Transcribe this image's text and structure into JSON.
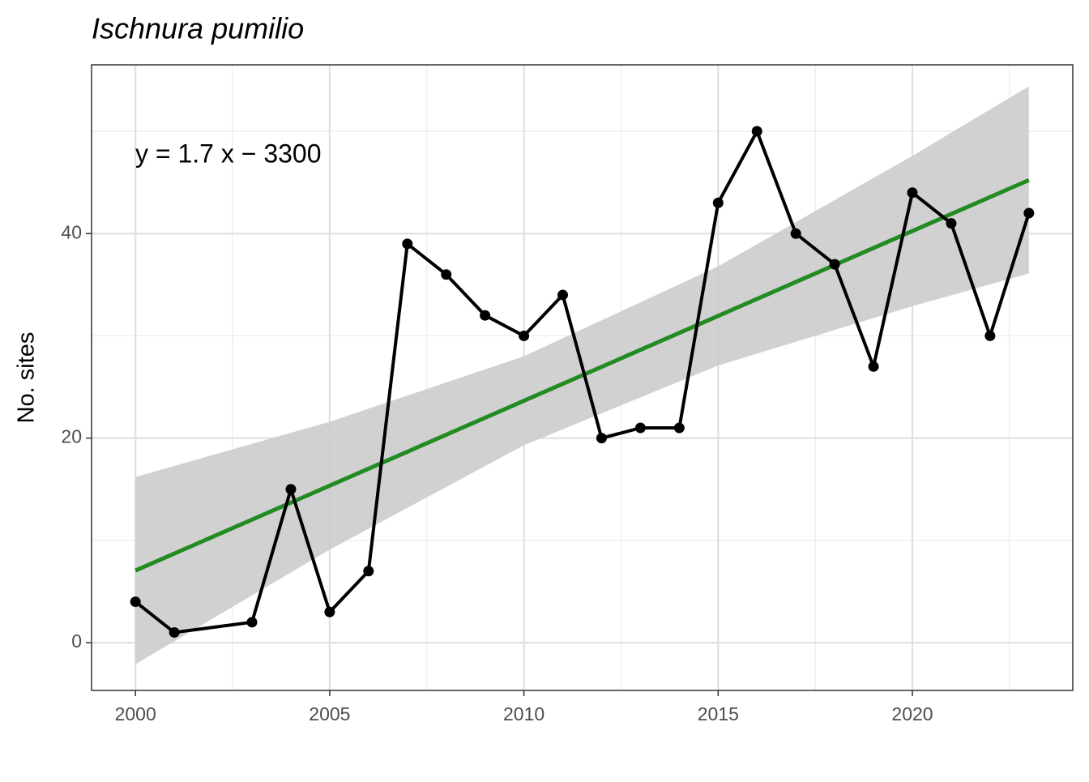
{
  "chart_data": {
    "type": "line",
    "title": "Ischnura pumilio",
    "y_label": "No. sites",
    "annotation": "y = 1.7 x − 3300",
    "x": [
      2000,
      2001,
      2003,
      2004,
      2005,
      2006,
      2007,
      2008,
      2009,
      2010,
      2011,
      2012,
      2013,
      2014,
      2015,
      2016,
      2017,
      2018,
      2019,
      2020,
      2021,
      2022,
      2023
    ],
    "series": [
      {
        "color": "#000000",
        "values": [
          4,
          1,
          2,
          15,
          3,
          7,
          39,
          36,
          32,
          30,
          34,
          20,
          21,
          21,
          43,
          50,
          40,
          37,
          27,
          44,
          41,
          30,
          42
        ]
      }
    ],
    "fit": {
      "color": "#228B22",
      "x": [
        2000,
        2023
      ],
      "values": [
        7.05,
        45.23
      ]
    },
    "ribbon": {
      "color": "#cccccc",
      "x": [
        2000,
        2005,
        2010,
        2015,
        2020,
        2023
      ],
      "lower": [
        -2.1,
        9.1,
        19.3,
        27.1,
        32.9,
        36.1
      ],
      "upper": [
        16.2,
        21.6,
        28.0,
        36.8,
        47.6,
        54.4
      ]
    },
    "xlim": [
      1998.87,
      2024.13
    ],
    "ylim": [
      -4.67,
      56.5
    ],
    "xticks": [
      2000,
      2005,
      2010,
      2015,
      2020
    ],
    "yticks": [
      0,
      20,
      40
    ],
    "grid": true
  }
}
